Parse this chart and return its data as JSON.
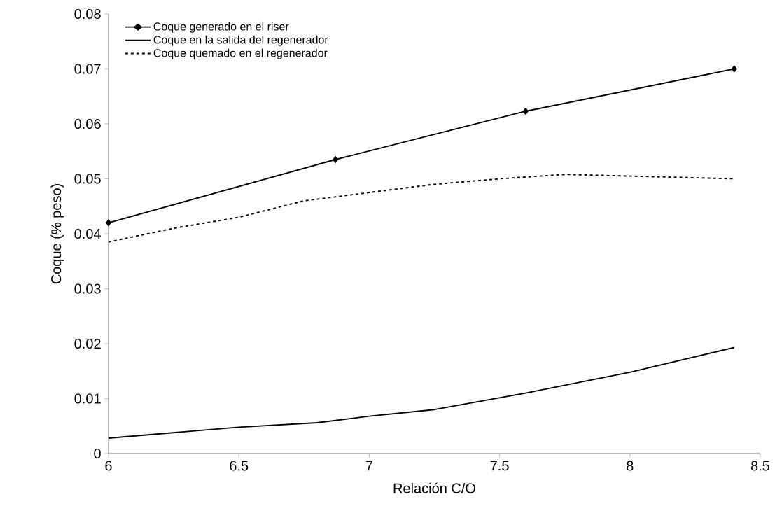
{
  "chart_data": {
    "type": "line",
    "xlabel": "Relación C/O",
    "ylabel": "Coque (% peso)",
    "xlim": [
      6,
      8.5
    ],
    "ylim": [
      0,
      0.08
    ],
    "xticks": [
      6,
      6.5,
      7,
      7.5,
      8,
      8.5
    ],
    "yticks": [
      0,
      0.01,
      0.02,
      0.03,
      0.04,
      0.05,
      0.06,
      0.07,
      0.08
    ],
    "grid": false,
    "legend": "top left",
    "series": [
      {
        "name": "Coque generado en el riser",
        "color": "#000000",
        "marker": "diamond",
        "line_style": "solid",
        "x": [
          6,
          6.87,
          7.6,
          8.4
        ],
        "values": [
          0.042,
          0.0535,
          0.0623,
          0.07
        ]
      },
      {
        "name": "Coque en la salida del regenerador",
        "color": "#000000",
        "marker": "none",
        "line_style": "solid",
        "x": [
          6,
          6.5,
          6.8,
          7.0,
          7.25,
          7.6,
          8.0,
          8.4
        ],
        "values": [
          0.0028,
          0.0048,
          0.0056,
          0.0068,
          0.008,
          0.011,
          0.0148,
          0.0193
        ]
      },
      {
        "name": "Coque quemado en el regenerador",
        "color": "#000000",
        "marker": "none",
        "line_style": "dotted",
        "x": [
          6,
          6.25,
          6.5,
          6.75,
          7.0,
          7.25,
          7.5,
          7.75,
          8.0,
          8.4
        ],
        "values": [
          0.0385,
          0.041,
          0.043,
          0.046,
          0.0475,
          0.049,
          0.05,
          0.0508,
          0.0505,
          0.05
        ]
      }
    ]
  }
}
